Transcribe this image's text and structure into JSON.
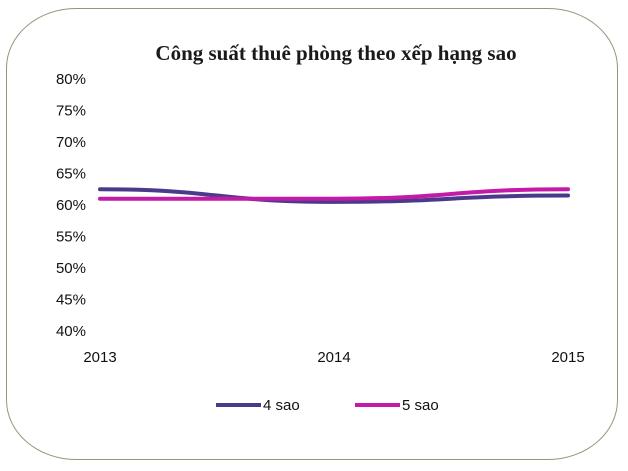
{
  "chart_data": {
    "type": "line",
    "title": "Công suất thuê phòng theo xếp hạng sao",
    "xlabel": "",
    "ylabel": "",
    "categories": [
      "2013",
      "2014",
      "2015"
    ],
    "y_ticks": [
      "40%",
      "45%",
      "50%",
      "55%",
      "60%",
      "65%",
      "70%",
      "75%",
      "80%"
    ],
    "ylim": [
      40,
      80
    ],
    "grid": false,
    "legend_position": "bottom",
    "series": [
      {
        "name": "4 sao",
        "values": [
          62.5,
          60.5,
          61.5
        ],
        "color": "#4b3a8c"
      },
      {
        "name": "5 sao",
        "values": [
          61.0,
          61.0,
          62.5
        ],
        "color": "#c41aa8"
      }
    ]
  }
}
